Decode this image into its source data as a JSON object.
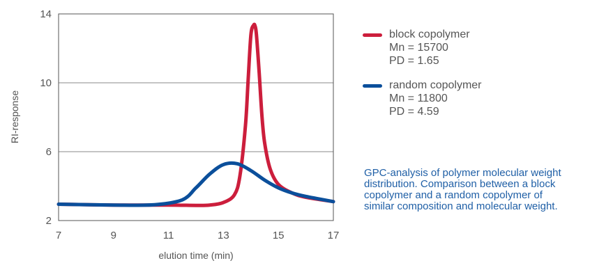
{
  "chart_data": {
    "type": "line",
    "title": "",
    "xlabel": "elution time (min)",
    "ylabel": "RI-response",
    "xlim": [
      7,
      17
    ],
    "ylim": [
      2,
      14
    ],
    "xticks": [
      7,
      9,
      11,
      13,
      15,
      17
    ],
    "yticks": [
      2,
      6,
      10,
      14
    ],
    "grid": "horizontal",
    "legend_position": "right",
    "series": [
      {
        "name": "block copolymer",
        "details": [
          "Mn = 15700",
          "PD = 1.65"
        ],
        "color": "#cc1e3c",
        "x": [
          7,
          9,
          11,
          12,
          12.5,
          13,
          13.4,
          13.6,
          13.8,
          13.9,
          14.0,
          14.1,
          14.15,
          14.2,
          14.3,
          14.4,
          14.5,
          14.7,
          15,
          15.5,
          16,
          17
        ],
        "y": [
          2.95,
          2.9,
          2.9,
          2.88,
          2.9,
          3.05,
          3.5,
          4.6,
          7.5,
          10.2,
          12.8,
          13.35,
          13.3,
          12.8,
          10.6,
          8.1,
          6.5,
          5.0,
          4.1,
          3.6,
          3.35,
          3.1
        ]
      },
      {
        "name": "random copolymer",
        "details": [
          "Mn = 11800",
          "PD = 4.59"
        ],
        "color": "#0b4f9b",
        "x": [
          7,
          9,
          10.5,
          11.5,
          12,
          12.5,
          13,
          13.5,
          14,
          14.5,
          15,
          15.5,
          16,
          17
        ],
        "y": [
          2.95,
          2.9,
          2.92,
          3.2,
          3.9,
          4.7,
          5.25,
          5.3,
          4.9,
          4.35,
          3.9,
          3.6,
          3.4,
          3.1
        ]
      }
    ]
  },
  "caption_lines": [
    "GPC-analysis of polymer molecular weight",
    "distribution. Comparison between a block",
    "copolymer and a random copolymer of",
    "similar composition and molecular weight."
  ]
}
